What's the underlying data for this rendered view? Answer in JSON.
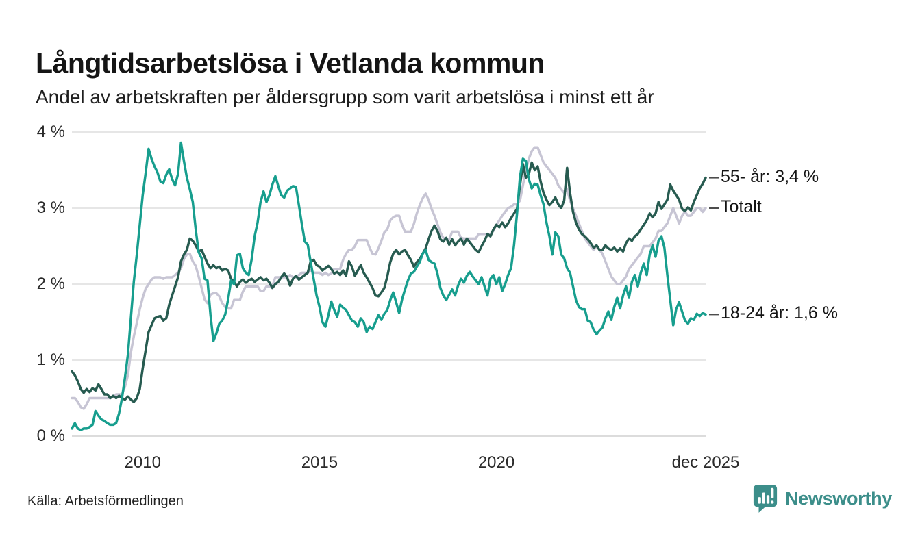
{
  "header": {
    "title": "Långtidsarbetslösa i Vetlanda kommun",
    "subtitle": "Andel av arbetskraften per åldersgrupp som varit arbetslösa i minst ett år"
  },
  "footer": {
    "source": "Källa: Arbetsförmedlingen",
    "brand_label": "Newsworthy",
    "brand_color": "#3c8e8a"
  },
  "chart_data": {
    "type": "line",
    "title": "Långtidsarbetslösa i Vetlanda kommun",
    "subtitle": "Andel av arbetskraften per åldersgrupp som varit arbetslösa i minst ett år",
    "x_unit": "month",
    "x_start": "2008-01",
    "x_end": "2025-12",
    "ylim": [
      0,
      4
    ],
    "grid": "horizontal",
    "grid_color": "#e6e6e6",
    "zero_line_color": "#dcdcdc",
    "tick_dash_color": "#4d4d4d",
    "legend_position": "end-of-line-labels",
    "yticks": [
      {
        "value": 0,
        "label": "0 %"
      },
      {
        "value": 1,
        "label": "1 %"
      },
      {
        "value": 2,
        "label": "2 %"
      },
      {
        "value": 3,
        "label": "3 %"
      },
      {
        "value": 4,
        "label": "4 %"
      }
    ],
    "xticks": [
      {
        "label": "2010",
        "month_index": 24
      },
      {
        "label": "2015",
        "month_index": 84
      },
      {
        "label": "2020",
        "month_index": 144
      },
      {
        "label": "dec 2025",
        "month_index": 215
      }
    ],
    "series": [
      {
        "name": "Totalt",
        "end_label": "Totalt",
        "last_value": 3.0,
        "color": "#c7c5d4",
        "values": [
          0.5,
          0.5,
          0.45,
          0.38,
          0.36,
          0.42,
          0.5,
          0.5,
          0.5,
          0.5,
          0.5,
          0.5,
          0.5,
          0.5,
          0.52,
          0.55,
          0.55,
          0.55,
          0.65,
          0.8,
          1.1,
          1.31,
          1.49,
          1.67,
          1.82,
          1.94,
          2.0,
          2.06,
          2.09,
          2.09,
          2.09,
          2.07,
          2.09,
          2.09,
          2.09,
          2.12,
          2.15,
          2.21,
          2.33,
          2.39,
          2.4,
          2.3,
          2.24,
          2.1,
          1.95,
          1.8,
          1.75,
          1.86,
          1.88,
          1.88,
          1.84,
          1.75,
          1.7,
          1.68,
          1.68,
          1.79,
          1.79,
          1.79,
          1.9,
          1.97,
          1.97,
          1.97,
          1.97,
          1.97,
          1.91,
          1.91,
          1.97,
          1.97,
          1.97,
          2.09,
          2.09,
          2.09,
          2.09,
          2.09,
          2.12,
          2.09,
          2.09,
          2.12,
          2.15,
          2.15,
          2.15,
          2.18,
          2.15,
          2.15,
          2.15,
          2.12,
          2.15,
          2.12,
          2.14,
          2.2,
          2.2,
          2.2,
          2.32,
          2.4,
          2.45,
          2.45,
          2.5,
          2.58,
          2.58,
          2.58,
          2.58,
          2.48,
          2.4,
          2.39,
          2.47,
          2.57,
          2.68,
          2.72,
          2.84,
          2.88,
          2.9,
          2.9,
          2.78,
          2.69,
          2.69,
          2.69,
          2.79,
          2.93,
          3.04,
          3.13,
          3.19,
          3.11,
          2.99,
          2.9,
          2.79,
          2.68,
          2.61,
          2.59,
          2.59,
          2.69,
          2.69,
          2.69,
          2.61,
          2.6,
          2.6,
          2.6,
          2.6,
          2.6,
          2.66,
          2.66,
          2.66,
          2.66,
          2.66,
          2.7,
          2.78,
          2.84,
          2.9,
          2.95,
          3.0,
          3.02,
          3.05,
          3.05,
          3.1,
          3.3,
          3.5,
          3.65,
          3.75,
          3.8,
          3.8,
          3.7,
          3.6,
          3.55,
          3.5,
          3.45,
          3.4,
          3.3,
          3.25,
          3.2,
          3.25,
          3.1,
          3.0,
          2.9,
          2.8,
          2.7,
          2.6,
          2.55,
          2.5,
          2.45,
          2.5,
          2.45,
          2.4,
          2.3,
          2.2,
          2.1,
          2.05,
          2.0,
          2.0,
          2.05,
          2.1,
          2.2,
          2.25,
          2.3,
          2.35,
          2.4,
          2.5,
          2.5,
          2.5,
          2.55,
          2.6,
          2.7,
          2.7,
          2.75,
          2.8,
          2.9,
          3.0,
          2.9,
          2.8,
          2.9,
          2.95,
          2.9,
          2.9,
          2.95,
          3.0,
          3.0,
          2.95,
          3.0
        ]
      },
      {
        "name": "55- år",
        "end_label": "55- år: 3,4 %",
        "last_value": 3.4,
        "color": "#275b50",
        "values": [
          0.85,
          0.8,
          0.72,
          0.62,
          0.57,
          0.62,
          0.58,
          0.63,
          0.6,
          0.68,
          0.62,
          0.55,
          0.55,
          0.5,
          0.53,
          0.5,
          0.53,
          0.5,
          0.48,
          0.52,
          0.48,
          0.45,
          0.5,
          0.62,
          0.89,
          1.13,
          1.37,
          1.46,
          1.55,
          1.57,
          1.58,
          1.52,
          1.55,
          1.73,
          1.85,
          1.97,
          2.09,
          2.3,
          2.39,
          2.45,
          2.6,
          2.57,
          2.51,
          2.43,
          2.45,
          2.36,
          2.27,
          2.21,
          2.25,
          2.21,
          2.23,
          2.18,
          2.2,
          2.18,
          2.07,
          2.03,
          1.97,
          2.03,
          2.06,
          2.02,
          2.05,
          2.07,
          2.03,
          2.06,
          2.09,
          2.05,
          2.07,
          2.02,
          1.95,
          2.0,
          2.03,
          2.09,
          2.14,
          2.09,
          1.98,
          2.07,
          2.11,
          2.06,
          2.09,
          2.12,
          2.15,
          2.3,
          2.32,
          2.25,
          2.23,
          2.18,
          2.21,
          2.24,
          2.2,
          2.14,
          2.16,
          2.12,
          2.18,
          2.11,
          2.3,
          2.23,
          2.11,
          2.18,
          2.25,
          2.15,
          2.09,
          2.02,
          1.95,
          1.85,
          1.84,
          1.89,
          1.95,
          2.1,
          2.29,
          2.4,
          2.45,
          2.39,
          2.43,
          2.45,
          2.38,
          2.32,
          2.23,
          2.29,
          2.33,
          2.4,
          2.47,
          2.59,
          2.7,
          2.77,
          2.7,
          2.59,
          2.56,
          2.61,
          2.52,
          2.59,
          2.51,
          2.56,
          2.6,
          2.52,
          2.6,
          2.55,
          2.5,
          2.45,
          2.42,
          2.5,
          2.57,
          2.66,
          2.63,
          2.72,
          2.78,
          2.75,
          2.81,
          2.75,
          2.8,
          2.87,
          2.93,
          2.99,
          3.3,
          3.58,
          3.4,
          3.45,
          3.6,
          3.5,
          3.55,
          3.35,
          3.2,
          3.11,
          3.04,
          3.08,
          3.14,
          3.05,
          3.0,
          3.1,
          3.53,
          3.2,
          2.95,
          2.81,
          2.72,
          2.66,
          2.63,
          2.59,
          2.54,
          2.48,
          2.51,
          2.45,
          2.45,
          2.51,
          2.47,
          2.45,
          2.48,
          2.43,
          2.47,
          2.43,
          2.54,
          2.6,
          2.57,
          2.63,
          2.66,
          2.72,
          2.78,
          2.84,
          2.93,
          2.88,
          2.93,
          3.08,
          2.99,
          3.05,
          3.11,
          3.31,
          3.23,
          3.17,
          3.11,
          2.99,
          2.96,
          3.01,
          2.97,
          3.08,
          3.17,
          3.26,
          3.32,
          3.4
        ]
      },
      {
        "name": "18-24 år",
        "end_label": "18-24 år: 1,6 %",
        "last_value": 1.6,
        "color": "#179e8e",
        "values": [
          0.1,
          0.17,
          0.1,
          0.08,
          0.1,
          0.1,
          0.12,
          0.15,
          0.33,
          0.27,
          0.22,
          0.2,
          0.17,
          0.15,
          0.15,
          0.17,
          0.3,
          0.5,
          0.77,
          1.07,
          1.55,
          2.03,
          2.39,
          2.78,
          3.17,
          3.46,
          3.78,
          3.65,
          3.55,
          3.47,
          3.35,
          3.33,
          3.44,
          3.51,
          3.38,
          3.3,
          3.45,
          3.86,
          3.62,
          3.4,
          3.25,
          3.08,
          2.72,
          2.42,
          2.34,
          2.07,
          2.05,
          1.6,
          1.25,
          1.35,
          1.48,
          1.52,
          1.6,
          1.8,
          2.05,
          2.0,
          2.38,
          2.4,
          2.21,
          2.15,
          2.12,
          2.33,
          2.63,
          2.81,
          3.08,
          3.22,
          3.08,
          3.17,
          3.31,
          3.42,
          3.29,
          3.17,
          3.14,
          3.23,
          3.26,
          3.29,
          3.28,
          3.04,
          2.79,
          2.56,
          2.52,
          2.29,
          2.07,
          1.85,
          1.7,
          1.5,
          1.44,
          1.59,
          1.77,
          1.66,
          1.57,
          1.73,
          1.69,
          1.66,
          1.59,
          1.52,
          1.5,
          1.44,
          1.55,
          1.5,
          1.37,
          1.44,
          1.41,
          1.5,
          1.59,
          1.53,
          1.61,
          1.66,
          1.79,
          1.89,
          1.76,
          1.62,
          1.8,
          1.93,
          2.05,
          2.14,
          2.16,
          2.23,
          2.29,
          2.4,
          2.45,
          2.32,
          2.29,
          2.27,
          2.14,
          1.95,
          1.85,
          1.79,
          1.86,
          1.93,
          1.85,
          1.98,
          2.07,
          2.02,
          2.11,
          2.16,
          2.1,
          2.05,
          2.0,
          2.09,
          1.97,
          1.85,
          2.07,
          2.12,
          2.0,
          2.09,
          1.91,
          2.0,
          2.12,
          2.21,
          2.51,
          2.93,
          3.41,
          3.65,
          3.62,
          3.38,
          3.26,
          3.32,
          3.31,
          3.17,
          3.05,
          2.81,
          2.63,
          2.39,
          2.68,
          2.63,
          2.39,
          2.34,
          2.21,
          2.15,
          1.97,
          1.79,
          1.7,
          1.67,
          1.67,
          1.52,
          1.5,
          1.4,
          1.34,
          1.39,
          1.43,
          1.55,
          1.64,
          1.53,
          1.7,
          1.82,
          1.68,
          1.85,
          1.97,
          1.82,
          2.03,
          2.12,
          1.97,
          2.15,
          2.27,
          2.12,
          2.39,
          2.51,
          2.36,
          2.57,
          2.63,
          2.48,
          2.12,
          1.79,
          1.46,
          1.67,
          1.76,
          1.64,
          1.52,
          1.48,
          1.55,
          1.53,
          1.61,
          1.58,
          1.62,
          1.6
        ]
      }
    ]
  }
}
